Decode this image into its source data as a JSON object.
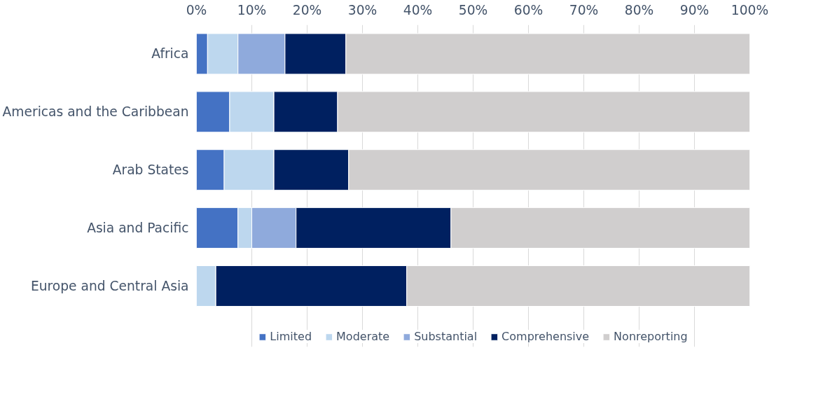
{
  "chart_data": {
    "type": "bar",
    "orientation": "horizontal",
    "stacked": true,
    "categories": [
      "Africa",
      "Americas and the Caribbean",
      "Arab States",
      "Asia and Pacific",
      "Europe and Central Asia"
    ],
    "series": [
      {
        "name": "Limited",
        "color": "#4472c4",
        "values": [
          2,
          6,
          5,
          7.5,
          0
        ]
      },
      {
        "name": "Moderate",
        "color": "#bdd7ee",
        "values": [
          5.5,
          8,
          9,
          2.5,
          3.5
        ]
      },
      {
        "name": "Substantial",
        "color": "#8faadc",
        "values": [
          8.5,
          0,
          0,
          8,
          0
        ]
      },
      {
        "name": "Comprehensive",
        "color": "#002060",
        "values": [
          11,
          11.5,
          13.5,
          28,
          34.5
        ]
      },
      {
        "name": "Nonreporting",
        "color": "#d0cece",
        "values": [
          73,
          74.5,
          72.5,
          54,
          62
        ]
      }
    ],
    "xlim": [
      0,
      100
    ],
    "xticks": [
      {
        "value": 0,
        "label": "0%"
      },
      {
        "value": 10,
        "label": "10%"
      },
      {
        "value": 20,
        "label": "20%"
      },
      {
        "value": 30,
        "label": "30%"
      },
      {
        "value": 40,
        "label": "40%"
      },
      {
        "value": 50,
        "label": "50%"
      },
      {
        "value": 60,
        "label": "60%"
      },
      {
        "value": 70,
        "label": "70%"
      },
      {
        "value": 80,
        "label": "80%"
      },
      {
        "value": 90,
        "label": "90%"
      },
      {
        "value": 100,
        "label": "100%"
      }
    ],
    "grid": "x",
    "legend": "bottom"
  }
}
